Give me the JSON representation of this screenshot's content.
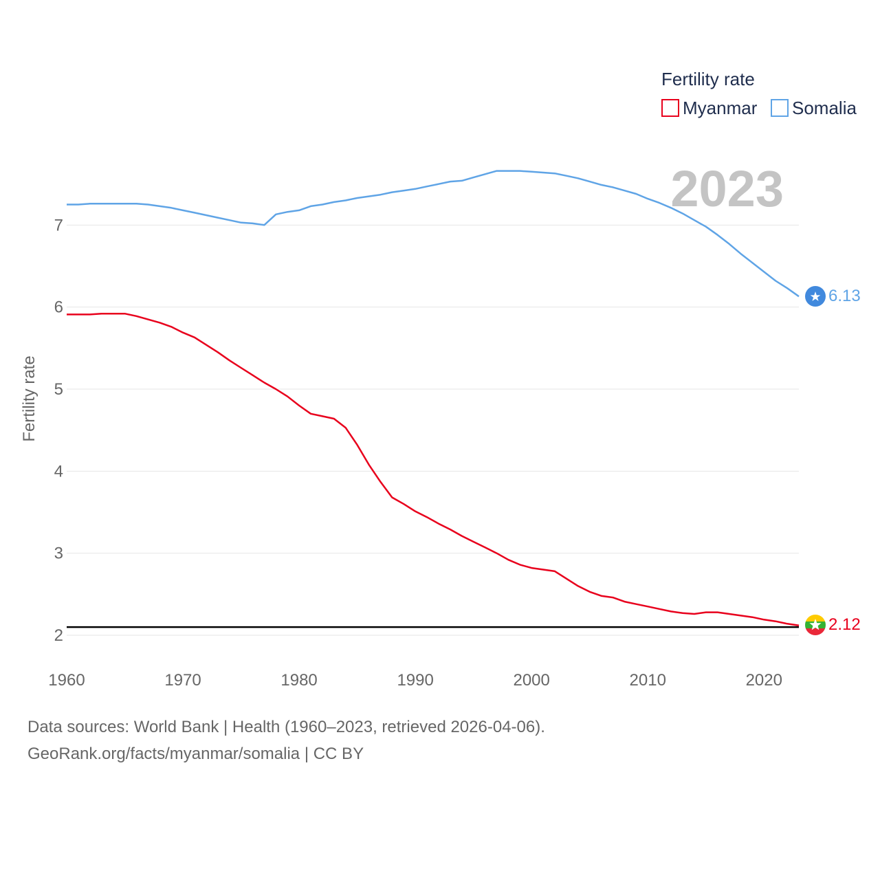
{
  "chart_data": {
    "type": "line",
    "ylabel": "Fertility rate",
    "legend_title": "Fertility rate",
    "year_label": "2023",
    "xlim": [
      1960,
      2023
    ],
    "ylim": [
      2,
      8
    ],
    "x_ticks": [
      1960,
      1970,
      1980,
      1990,
      2000,
      2010,
      2020
    ],
    "y_ticks": [
      2,
      3,
      4,
      5,
      6,
      7
    ],
    "reference_line": 2.1,
    "x": [
      1960,
      1961,
      1962,
      1963,
      1964,
      1965,
      1966,
      1967,
      1968,
      1969,
      1970,
      1971,
      1972,
      1973,
      1974,
      1975,
      1976,
      1977,
      1978,
      1979,
      1980,
      1981,
      1982,
      1983,
      1984,
      1985,
      1986,
      1987,
      1988,
      1989,
      1990,
      1991,
      1992,
      1993,
      1994,
      1995,
      1996,
      1997,
      1998,
      1999,
      2000,
      2001,
      2002,
      2003,
      2004,
      2005,
      2006,
      2007,
      2008,
      2009,
      2010,
      2011,
      2012,
      2013,
      2014,
      2015,
      2016,
      2017,
      2018,
      2019,
      2020,
      2021,
      2022,
      2023
    ],
    "series": [
      {
        "name": "Myanmar",
        "color": "#e8001c",
        "end_label": "2.12",
        "flag": "myanmar-flag",
        "values": [
          5.91,
          5.91,
          5.91,
          5.92,
          5.92,
          5.92,
          5.89,
          5.85,
          5.81,
          5.76,
          5.69,
          5.63,
          5.54,
          5.45,
          5.35,
          5.26,
          5.17,
          5.08,
          5.0,
          4.91,
          4.8,
          4.7,
          4.67,
          4.64,
          4.53,
          4.32,
          4.08,
          3.87,
          3.68,
          3.6,
          3.51,
          3.44,
          3.36,
          3.29,
          3.21,
          3.14,
          3.07,
          3.0,
          2.92,
          2.86,
          2.82,
          2.8,
          2.78,
          2.69,
          2.6,
          2.53,
          2.48,
          2.46,
          2.41,
          2.38,
          2.35,
          2.32,
          2.29,
          2.27,
          2.26,
          2.28,
          2.28,
          2.26,
          2.24,
          2.22,
          2.19,
          2.17,
          2.14,
          2.12
        ]
      },
      {
        "name": "Somalia",
        "color": "#5fa4e6",
        "end_label": "6.13",
        "flag": "somalia-flag",
        "values": [
          7.25,
          7.25,
          7.26,
          7.26,
          7.26,
          7.26,
          7.26,
          7.25,
          7.23,
          7.21,
          7.18,
          7.15,
          7.12,
          7.09,
          7.06,
          7.03,
          7.02,
          7.0,
          7.13,
          7.16,
          7.18,
          7.23,
          7.25,
          7.28,
          7.3,
          7.33,
          7.35,
          7.37,
          7.4,
          7.42,
          7.44,
          7.47,
          7.5,
          7.53,
          7.54,
          7.58,
          7.62,
          7.66,
          7.66,
          7.66,
          7.65,
          7.64,
          7.63,
          7.6,
          7.57,
          7.53,
          7.49,
          7.46,
          7.42,
          7.38,
          7.32,
          7.27,
          7.21,
          7.14,
          7.06,
          6.98,
          6.88,
          6.77,
          6.65,
          6.54,
          6.43,
          6.32,
          6.23,
          6.13
        ]
      }
    ]
  },
  "footer": {
    "line1": "Data sources: World Bank | Health (1960–2023, retrieved 2026-04-06).",
    "line2": "GeoRank.org/facts/myanmar/somalia | CC BY"
  }
}
